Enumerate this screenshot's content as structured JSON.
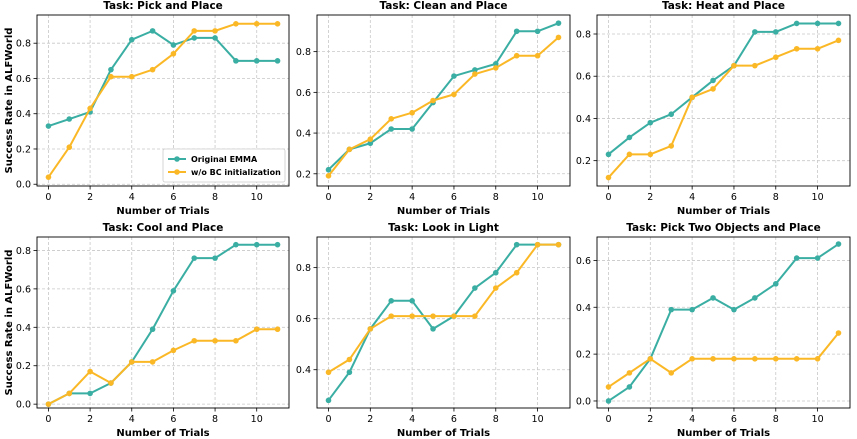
{
  "colors": {
    "original": "#3aaea3",
    "bc": "#fbb826",
    "grid": "#c8c8c8"
  },
  "legend": {
    "placement": "lower-right",
    "panel": 0
  },
  "chart_data": [
    {
      "type": "line",
      "title": "Task: Pick and Place",
      "xlabel": "Number of Trials",
      "ylabel": "Success Rate in ALFWorld",
      "x": [
        0,
        1,
        2,
        3,
        4,
        5,
        6,
        7,
        8,
        9,
        10,
        11
      ],
      "xticks": [
        0,
        2,
        4,
        6,
        8,
        10
      ],
      "xlim": [
        -0.55,
        11.55
      ],
      "ylim": [
        -0.01,
        0.96
      ],
      "yticks": [
        0.0,
        0.2,
        0.4,
        0.6,
        0.8
      ],
      "ytick_labels": [
        "0.0",
        "0.2",
        "0.4",
        "0.6",
        "0.8"
      ],
      "grid": true,
      "series": [
        {
          "name": "Original EMMA",
          "values": [
            0.33,
            0.37,
            0.41,
            0.65,
            0.82,
            0.87,
            0.79,
            0.83,
            0.83,
            0.7,
            0.7,
            0.7
          ]
        },
        {
          "name": "w/o BC initialization",
          "values": [
            0.04,
            0.21,
            0.43,
            0.61,
            0.61,
            0.65,
            0.74,
            0.87,
            0.87,
            0.91,
            0.91,
            0.91
          ]
        }
      ]
    },
    {
      "type": "line",
      "title": "Task: Clean and Place",
      "xlabel": "Number of Trials",
      "ylabel": "",
      "x": [
        0,
        1,
        2,
        3,
        4,
        5,
        6,
        7,
        8,
        9,
        10,
        11
      ],
      "xticks": [
        0,
        2,
        4,
        6,
        8,
        10
      ],
      "xlim": [
        -0.55,
        11.55
      ],
      "ylim": [
        0.14,
        0.98
      ],
      "yticks": [
        0.2,
        0.4,
        0.6,
        0.8
      ],
      "ytick_labels": [
        "0.2",
        "0.4",
        "0.6",
        "0.8"
      ],
      "grid": true,
      "series": [
        {
          "name": "Original EMMA",
          "values": [
            0.22,
            0.32,
            0.35,
            0.42,
            0.42,
            0.55,
            0.68,
            0.71,
            0.74,
            0.9,
            0.9,
            0.94
          ]
        },
        {
          "name": "w/o BC initialization",
          "values": [
            0.19,
            0.32,
            0.37,
            0.47,
            0.5,
            0.56,
            0.59,
            0.69,
            0.72,
            0.78,
            0.78,
            0.87
          ]
        }
      ]
    },
    {
      "type": "line",
      "title": "Task: Heat and Place",
      "xlabel": "Number of Trials",
      "ylabel": "",
      "x": [
        0,
        1,
        2,
        3,
        4,
        5,
        6,
        7,
        8,
        9,
        10,
        11
      ],
      "xticks": [
        0,
        2,
        4,
        6,
        8,
        10
      ],
      "xlim": [
        -0.55,
        11.55
      ],
      "ylim": [
        0.08,
        0.89
      ],
      "yticks": [
        0.2,
        0.4,
        0.6,
        0.8
      ],
      "ytick_labels": [
        "0.2",
        "0.4",
        "0.6",
        "0.8"
      ],
      "grid": true,
      "series": [
        {
          "name": "Original EMMA",
          "values": [
            0.23,
            0.31,
            0.38,
            0.42,
            0.5,
            0.58,
            0.65,
            0.81,
            0.81,
            0.85,
            0.85,
            0.85
          ]
        },
        {
          "name": "w/o BC initialization",
          "values": [
            0.12,
            0.23,
            0.23,
            0.27,
            0.5,
            0.54,
            0.65,
            0.65,
            0.69,
            0.73,
            0.73,
            0.77
          ]
        }
      ]
    },
    {
      "type": "line",
      "title": "Task: Cool and Place",
      "xlabel": "Number of Trials",
      "ylabel": "Success Rate in ALFWorld",
      "x": [
        0,
        1,
        2,
        3,
        4,
        5,
        6,
        7,
        8,
        9,
        10,
        11
      ],
      "xticks": [
        0,
        2,
        4,
        6,
        8,
        10
      ],
      "xlim": [
        -0.55,
        11.55
      ],
      "ylim": [
        -0.02,
        0.87
      ],
      "yticks": [
        0.0,
        0.2,
        0.4,
        0.6,
        0.8
      ],
      "ytick_labels": [
        "0.0",
        "0.2",
        "0.4",
        "0.6",
        "0.8"
      ],
      "grid": true,
      "series": [
        {
          "name": "Original EMMA",
          "values": [
            0.0,
            0.056,
            0.056,
            0.11,
            0.22,
            0.39,
            0.59,
            0.76,
            0.76,
            0.83,
            0.83,
            0.83
          ]
        },
        {
          "name": "w/o BC initialization",
          "values": [
            0.0,
            0.056,
            0.17,
            0.11,
            0.22,
            0.22,
            0.28,
            0.33,
            0.33,
            0.33,
            0.39,
            0.39
          ]
        }
      ]
    },
    {
      "type": "line",
      "title": "Task: Look in Light",
      "xlabel": "Number of Trials",
      "ylabel": "",
      "x": [
        0,
        1,
        2,
        3,
        4,
        5,
        6,
        7,
        8,
        9,
        10,
        11
      ],
      "xticks": [
        0,
        2,
        4,
        6,
        8,
        10
      ],
      "xlim": [
        -0.55,
        11.55
      ],
      "ylim": [
        0.25,
        0.92
      ],
      "yticks": [
        0.4,
        0.6,
        0.8
      ],
      "ytick_labels": [
        "0.4",
        "0.6",
        "0.8"
      ],
      "grid": true,
      "series": [
        {
          "name": "Original EMMA",
          "values": [
            0.28,
            0.39,
            0.56,
            0.67,
            0.67,
            0.56,
            0.61,
            0.72,
            0.78,
            0.89,
            0.89,
            0.89
          ]
        },
        {
          "name": "w/o BC initialization",
          "values": [
            0.39,
            0.44,
            0.56,
            0.61,
            0.61,
            0.61,
            0.61,
            0.61,
            0.72,
            0.78,
            0.89,
            0.89
          ]
        }
      ]
    },
    {
      "type": "line",
      "title": "Task: Pick Two Objects and Place",
      "xlabel": "Number of Trials",
      "ylabel": "",
      "x": [
        0,
        1,
        2,
        3,
        4,
        5,
        6,
        7,
        8,
        9,
        10,
        11
      ],
      "xticks": [
        0,
        2,
        4,
        6,
        8,
        10
      ],
      "xlim": [
        -0.55,
        11.55
      ],
      "ylim": [
        -0.03,
        0.7
      ],
      "yticks": [
        0.0,
        0.2,
        0.4,
        0.6
      ],
      "ytick_labels": [
        "0.0",
        "0.2",
        "0.4",
        "0.6"
      ],
      "grid": true,
      "series": [
        {
          "name": "Original EMMA",
          "values": [
            0.0,
            0.06,
            0.18,
            0.39,
            0.39,
            0.44,
            0.39,
            0.44,
            0.5,
            0.61,
            0.61,
            0.67
          ]
        },
        {
          "name": "w/o BC initialization",
          "values": [
            0.06,
            0.12,
            0.18,
            0.12,
            0.18,
            0.18,
            0.18,
            0.18,
            0.18,
            0.18,
            0.18,
            0.29
          ]
        }
      ]
    }
  ]
}
